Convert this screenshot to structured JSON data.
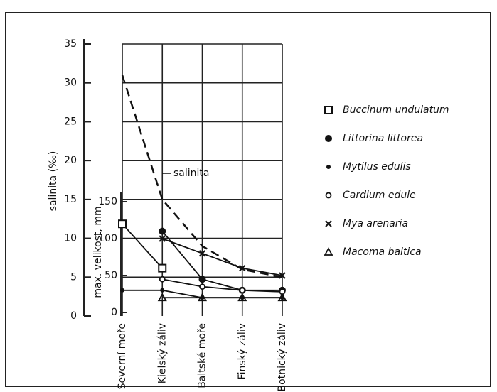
{
  "chart_data": {
    "type": "line",
    "categories": [
      "Severní moře",
      "Kielský záliv",
      "Baltské moře",
      "Finský záliv",
      "Botnický záliv"
    ],
    "ylabel": "salinita (‰)",
    "y2label": "max. velikost, mm",
    "annotation": "salinita",
    "ylim": [
      0,
      35
    ],
    "yticks": [
      0,
      5,
      10,
      15,
      20,
      25,
      30,
      35
    ],
    "y2lim": [
      0,
      150
    ],
    "y2ticks": [
      0,
      50,
      100,
      150
    ],
    "grid": true,
    "legend": "right",
    "series": [
      {
        "name": "salinita",
        "color": "#111",
        "dashed": true,
        "values": [
          31,
          15,
          9,
          6,
          5
        ]
      },
      {
        "name": "Buccinum undulatum",
        "color": "#111",
        "marker": "square",
        "axis": "y2",
        "values": [
          120,
          60,
          null,
          null,
          null
        ]
      },
      {
        "name": "Littorina littorea",
        "color": "#111",
        "marker": "dot",
        "axis": "y2",
        "values": [
          null,
          110,
          45,
          30,
          30
        ]
      },
      {
        "name": "Mytilus edulis",
        "color": "#111",
        "marker": "smalldot",
        "axis": "y2",
        "values": [
          30,
          30,
          20,
          20,
          20
        ]
      },
      {
        "name": "Cardium edule",
        "color": "#111",
        "marker": "circle",
        "axis": "y2",
        "values": [
          null,
          45,
          35,
          30,
          28
        ]
      },
      {
        "name": "Mya arenaria",
        "color": "#111",
        "marker": "cross",
        "axis": "y2",
        "values": [
          null,
          100,
          80,
          60,
          50
        ]
      },
      {
        "name": "Macoma baltica",
        "color": "#111",
        "marker": "triangle",
        "axis": "y2",
        "values": [
          null,
          20,
          20,
          20,
          20
        ]
      }
    ]
  }
}
